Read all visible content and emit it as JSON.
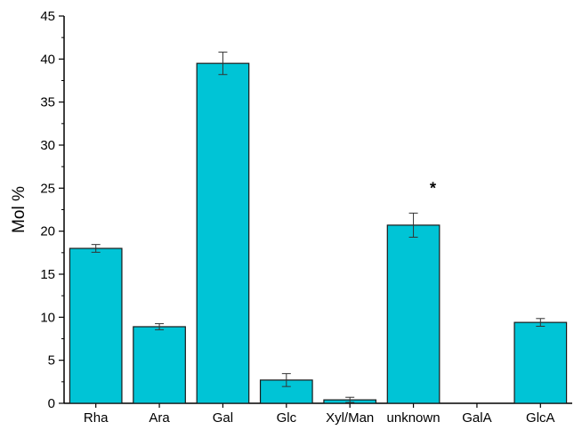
{
  "chart_data": {
    "type": "bar",
    "title": "",
    "xlabel": "",
    "ylabel": "Mol %",
    "ylim": [
      0,
      45
    ],
    "yticks": [
      0,
      5,
      10,
      15,
      20,
      25,
      30,
      35,
      40,
      45
    ],
    "categories": [
      "Rha",
      "Ara",
      "Gal",
      "Glc",
      "Xyl/Man",
      "unknown",
      "GalA",
      "GlcA"
    ],
    "values": [
      18.0,
      8.9,
      39.5,
      2.7,
      0.4,
      20.7,
      0.0,
      9.4
    ],
    "errors": [
      0.45,
      0.35,
      1.3,
      0.75,
      0.3,
      1.4,
      0.0,
      0.45
    ],
    "annotations": [
      {
        "category": "unknown",
        "text": "*"
      }
    ],
    "grid": false,
    "colors": {
      "bar_fill": "#00c4d6",
      "bar_stroke": "#1a1a1a",
      "axis": "#000000"
    }
  }
}
